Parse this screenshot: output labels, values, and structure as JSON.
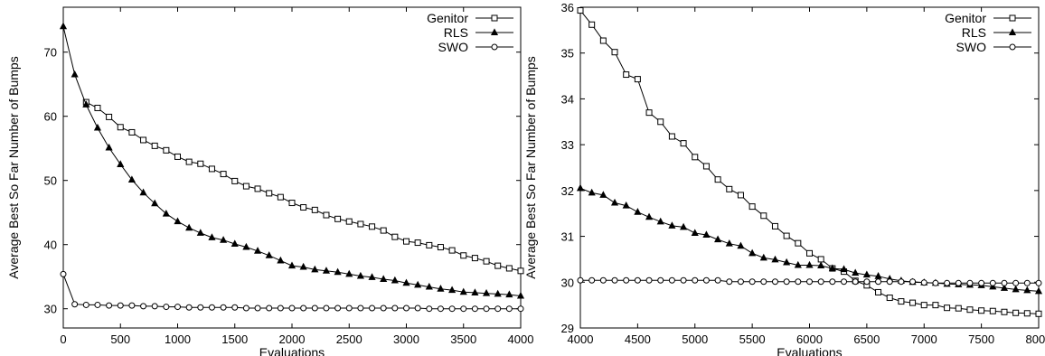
{
  "chart_data": [
    {
      "type": "line",
      "xlabel": "Evaluations",
      "ylabel": "Average Best So Far Number of Bumps",
      "xlim": [
        0,
        4000
      ],
      "ylim": [
        27,
        77
      ],
      "xticks": [
        "0",
        "500",
        "1000",
        "1500",
        "2000",
        "2500",
        "3000",
        "3500",
        "4000"
      ],
      "yticks": [
        "30",
        "40",
        "50",
        "60",
        "70"
      ],
      "grid": false,
      "legend_position": "top-right",
      "series": [
        {
          "name": "Genitor",
          "marker": "square",
          "x": [
            200,
            300,
            400,
            500,
            600,
            700,
            800,
            900,
            1000,
            1100,
            1200,
            1300,
            1400,
            1500,
            1600,
            1700,
            1800,
            1900,
            2000,
            2100,
            2200,
            2300,
            2400,
            2500,
            2600,
            2700,
            2800,
            2900,
            3000,
            3100,
            3200,
            3300,
            3400,
            3500,
            3600,
            3700,
            3800,
            3900,
            4000
          ],
          "y": [
            62.2,
            61.3,
            59.9,
            58.3,
            57.5,
            56.3,
            55.4,
            54.7,
            53.7,
            52.9,
            52.6,
            51.8,
            51.0,
            49.9,
            49.1,
            48.7,
            48.0,
            47.4,
            46.5,
            45.8,
            45.4,
            44.6,
            44.0,
            43.6,
            43.2,
            42.8,
            42.2,
            41.2,
            40.5,
            40.3,
            39.9,
            39.6,
            39.1,
            38.3,
            37.9,
            37.4,
            36.7,
            36.3,
            35.9
          ]
        },
        {
          "name": "RLS",
          "marker": "triangle",
          "x": [
            0,
            100,
            200,
            300,
            400,
            500,
            600,
            700,
            800,
            900,
            1000,
            1100,
            1200,
            1300,
            1400,
            1500,
            1600,
            1700,
            1800,
            1900,
            2000,
            2100,
            2200,
            2300,
            2400,
            2500,
            2600,
            2700,
            2800,
            2900,
            3000,
            3100,
            3200,
            3300,
            3400,
            3500,
            3600,
            3700,
            3800,
            3900,
            4000
          ],
          "y": [
            74.0,
            66.5,
            61.8,
            58.2,
            55.1,
            52.5,
            50.1,
            48.1,
            46.4,
            44.8,
            43.6,
            42.6,
            41.8,
            41.1,
            40.7,
            40.1,
            39.6,
            39.0,
            38.3,
            37.5,
            36.7,
            36.5,
            36.1,
            35.9,
            35.7,
            35.4,
            35.1,
            34.9,
            34.6,
            34.4,
            34.0,
            33.7,
            33.4,
            33.1,
            32.9,
            32.6,
            32.5,
            32.4,
            32.3,
            32.2,
            32.0
          ]
        },
        {
          "name": "SWO",
          "marker": "circle",
          "x": [
            0,
            100,
            200,
            300,
            400,
            500,
            600,
            700,
            800,
            900,
            1000,
            1100,
            1200,
            1300,
            1400,
            1500,
            1600,
            1700,
            1800,
            1900,
            2000,
            2100,
            2200,
            2300,
            2400,
            2500,
            2600,
            2700,
            2800,
            2900,
            3000,
            3100,
            3200,
            3300,
            3400,
            3500,
            3600,
            3700,
            3800,
            3900,
            4000
          ],
          "y": [
            35.4,
            30.7,
            30.6,
            30.6,
            30.5,
            30.5,
            30.5,
            30.4,
            30.4,
            30.3,
            30.3,
            30.2,
            30.2,
            30.2,
            30.2,
            30.2,
            30.1,
            30.1,
            30.1,
            30.1,
            30.1,
            30.1,
            30.1,
            30.1,
            30.1,
            30.1,
            30.1,
            30.1,
            30.1,
            30.1,
            30.1,
            30.1,
            30.0,
            30.0,
            30.0,
            30.0,
            30.0,
            30.0,
            30.0,
            30.0,
            30.0
          ]
        }
      ]
    },
    {
      "type": "line",
      "xlabel": "Evaluations",
      "ylabel": "Average Best So Far Number of Bumps",
      "xlim": [
        4000,
        8000
      ],
      "ylim": [
        29,
        36
      ],
      "xticks": [
        "4000",
        "4500",
        "5000",
        "5500",
        "6000",
        "6500",
        "7000",
        "7500",
        "8000"
      ],
      "yticks": [
        "29",
        "30",
        "31",
        "32",
        "33",
        "34",
        "35",
        "36"
      ],
      "grid": false,
      "legend_position": "top-right",
      "series": [
        {
          "name": "Genitor",
          "marker": "square",
          "x": [
            4000,
            4100,
            4200,
            4300,
            4400,
            4500,
            4600,
            4700,
            4800,
            4900,
            5000,
            5100,
            5200,
            5300,
            5400,
            5500,
            5600,
            5700,
            5800,
            5900,
            6000,
            6100,
            6200,
            6300,
            6400,
            6500,
            6600,
            6700,
            6800,
            6900,
            7000,
            7100,
            7200,
            7300,
            7400,
            7500,
            7600,
            7700,
            7800,
            7900,
            8000
          ],
          "y": [
            35.93,
            35.62,
            35.27,
            35.02,
            34.53,
            34.43,
            33.7,
            33.5,
            33.18,
            33.03,
            32.73,
            32.53,
            32.24,
            32.03,
            31.9,
            31.65,
            31.45,
            31.22,
            31.01,
            30.85,
            30.63,
            30.5,
            30.3,
            30.23,
            30.03,
            29.93,
            29.78,
            29.66,
            29.58,
            29.55,
            29.5,
            29.5,
            29.44,
            29.43,
            29.4,
            29.38,
            29.37,
            29.35,
            29.33,
            29.32,
            29.31
          ]
        },
        {
          "name": "RLS",
          "marker": "triangle",
          "x": [
            4000,
            4100,
            4200,
            4300,
            4400,
            4500,
            4600,
            4700,
            4800,
            4900,
            5000,
            5100,
            5200,
            5300,
            5400,
            5500,
            5600,
            5700,
            5800,
            5900,
            6000,
            6100,
            6200,
            6300,
            6400,
            6500,
            6600,
            6700,
            6800,
            6900,
            7000,
            7100,
            7200,
            7300,
            7400,
            7500,
            7600,
            7700,
            7800,
            7900,
            8000
          ],
          "y": [
            32.05,
            31.95,
            31.9,
            31.73,
            31.67,
            31.53,
            31.42,
            31.32,
            31.23,
            31.2,
            31.07,
            31.03,
            30.93,
            30.84,
            30.79,
            30.63,
            30.53,
            30.49,
            30.43,
            30.37,
            30.37,
            30.36,
            30.3,
            30.28,
            30.2,
            30.16,
            30.13,
            30.07,
            30.03,
            30.0,
            29.99,
            29.98,
            29.96,
            29.95,
            29.94,
            29.93,
            29.9,
            29.87,
            29.84,
            29.82,
            29.8
          ]
        },
        {
          "name": "SWO",
          "marker": "circle",
          "x": [
            4000,
            4100,
            4200,
            4300,
            4400,
            4500,
            4600,
            4700,
            4800,
            4900,
            5000,
            5100,
            5200,
            5300,
            5400,
            5500,
            5600,
            5700,
            5800,
            5900,
            6000,
            6100,
            6200,
            6300,
            6400,
            6500,
            6600,
            6700,
            6800,
            6900,
            7000,
            7100,
            7200,
            7300,
            7400,
            7500,
            7600,
            7700,
            7800,
            7900,
            8000
          ],
          "y": [
            30.04,
            30.04,
            30.04,
            30.04,
            30.04,
            30.04,
            30.04,
            30.04,
            30.04,
            30.04,
            30.04,
            30.04,
            30.04,
            30.01,
            30.01,
            30.01,
            30.01,
            30.01,
            30.01,
            30.01,
            30.01,
            30.01,
            30.01,
            30.01,
            30.01,
            30.01,
            30.01,
            30.01,
            30.01,
            30.01,
            29.99,
            29.98,
            29.98,
            29.98,
            29.98,
            29.98,
            29.98,
            29.98,
            29.98,
            29.98,
            29.98
          ]
        }
      ]
    }
  ]
}
